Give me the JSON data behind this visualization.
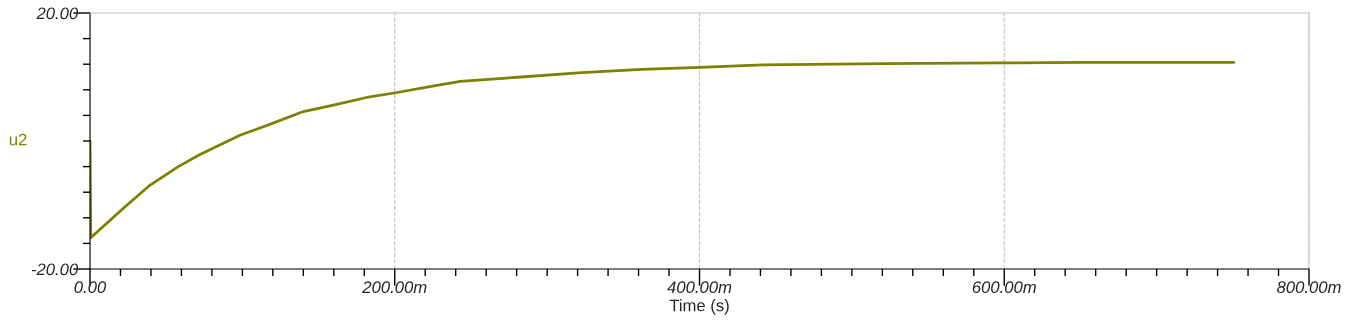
{
  "chart_data": {
    "type": "line",
    "xlabel": "Time (s)",
    "ylabel": "u2",
    "marker": "none",
    "line_style": "solid",
    "grid": "x",
    "legend": false,
    "xlim": [
      0,
      800
    ],
    "ylim": [
      -20,
      20
    ],
    "xticks": [
      {
        "value": 0,
        "label": "0.00"
      },
      {
        "value": 20,
        "label": null
      },
      {
        "value": 40,
        "label": null
      },
      {
        "value": 60,
        "label": null
      },
      {
        "value": 80,
        "label": null
      },
      {
        "value": 100,
        "label": null
      },
      {
        "value": 120,
        "label": null
      },
      {
        "value": 140,
        "label": null
      },
      {
        "value": 160,
        "label": null
      },
      {
        "value": 180,
        "label": null
      },
      {
        "value": 200,
        "label": "200.00m"
      },
      {
        "value": 220,
        "label": null
      },
      {
        "value": 240,
        "label": null
      },
      {
        "value": 260,
        "label": null
      },
      {
        "value": 280,
        "label": null
      },
      {
        "value": 300,
        "label": null
      },
      {
        "value": 320,
        "label": null
      },
      {
        "value": 340,
        "label": null
      },
      {
        "value": 360,
        "label": null
      },
      {
        "value": 380,
        "label": null
      },
      {
        "value": 400,
        "label": "400.00m"
      },
      {
        "value": 420,
        "label": null
      },
      {
        "value": 440,
        "label": null
      },
      {
        "value": 460,
        "label": null
      },
      {
        "value": 480,
        "label": null
      },
      {
        "value": 500,
        "label": null
      },
      {
        "value": 520,
        "label": null
      },
      {
        "value": 540,
        "label": null
      },
      {
        "value": 560,
        "label": null
      },
      {
        "value": 580,
        "label": null
      },
      {
        "value": 600,
        "label": "600.00m"
      },
      {
        "value": 620,
        "label": null
      },
      {
        "value": 640,
        "label": null
      },
      {
        "value": 660,
        "label": null
      },
      {
        "value": 680,
        "label": null
      },
      {
        "value": 700,
        "label": null
      },
      {
        "value": 720,
        "label": null
      },
      {
        "value": 740,
        "label": null
      },
      {
        "value": 760,
        "label": null
      },
      {
        "value": 780,
        "label": null
      },
      {
        "value": 800,
        "label": "800.00m"
      }
    ],
    "yticks": [
      {
        "value": -20,
        "label": "-20.00"
      },
      {
        "value": -16,
        "label": null
      },
      {
        "value": -12,
        "label": null
      },
      {
        "value": -8,
        "label": null
      },
      {
        "value": -4,
        "label": null
      },
      {
        "value": 0,
        "label": null
      },
      {
        "value": 4,
        "label": null
      },
      {
        "value": 8,
        "label": null
      },
      {
        "value": 12,
        "label": null
      },
      {
        "value": 16,
        "label": null
      },
      {
        "value": 20,
        "label": "20.00"
      }
    ],
    "series": [
      {
        "color": "#808000",
        "x": [
          0,
          0.5,
          21.9,
          38.3,
          57.9,
          72.2,
          98.4,
          118,
          140,
          159.7,
          181.5,
          199.7,
          223,
          243,
          283,
          322.6,
          362,
          400,
          441.6,
          521,
          600,
          652,
          750.7
        ],
        "values": [
          0,
          -15.1,
          -10.5,
          -7.1,
          -4.0,
          -2.1,
          0.9,
          2.6,
          4.6,
          5.6,
          6.8,
          7.5,
          8.5,
          9.3,
          10.0,
          10.7,
          11.2,
          11.5,
          11.9,
          12.1,
          12.2,
          12.3,
          12.3
        ]
      }
    ]
  }
}
